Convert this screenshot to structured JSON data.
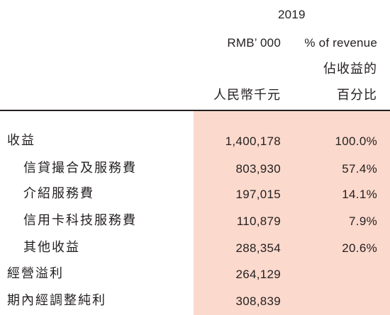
{
  "header": {
    "year": "2019",
    "amount_unit_en": "RMB’ 000",
    "percent_label_en": "% of revenue",
    "percent_label_zh_line1": "佔收益的",
    "percent_label_zh_line2": "百分比",
    "amount_unit_zh": "人民幣千元"
  },
  "rows": [
    {
      "label": "收益",
      "amount": "1,400,178",
      "percent": "100.0%"
    },
    {
      "label": "信貸撮合及服務費",
      "amount": "803,930",
      "percent": "57.4%"
    },
    {
      "label": "介紹服務費",
      "amount": "197,015",
      "percent": "14.1%"
    },
    {
      "label": "信用卡科技服務費",
      "amount": "110,879",
      "percent": "7.9%"
    },
    {
      "label": "其他收益",
      "amount": "288,354",
      "percent": "20.6%"
    },
    {
      "label": "經營溢利",
      "amount": "264,129",
      "percent": ""
    },
    {
      "label": "期內經調整純利",
      "amount": "308,839",
      "percent": ""
    }
  ],
  "colors": {
    "highlight": "#fbd9cc",
    "text": "#231f20",
    "rule": "#231f20"
  }
}
